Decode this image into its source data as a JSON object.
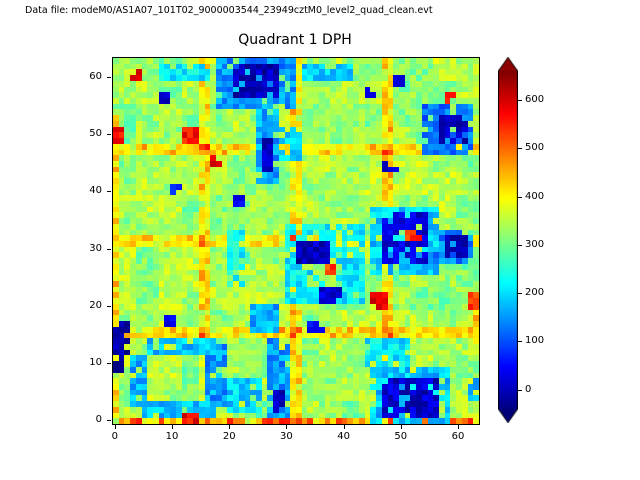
{
  "header": {
    "datafile_label": "Data file: modeM0/AS1A07_101T02_9000003544_23949cztM0_level2_quad_clean.evt"
  },
  "chart_data": {
    "type": "heatmap",
    "title": "Quadrant 1 DPH",
    "grid_size": 64,
    "x_ticks": [
      0,
      10,
      20,
      30,
      40,
      50,
      60
    ],
    "y_ticks": [
      0,
      10,
      20,
      30,
      40,
      50,
      60
    ],
    "colormap": "jet",
    "vmin": -40,
    "vmax": 660,
    "colorbar_ticks": [
      0,
      100,
      200,
      300,
      400,
      500,
      600
    ],
    "colorbar_extend": "both",
    "background_value": 330,
    "noise_amplitude": 38,
    "module_boundaries": [
      16,
      32,
      48
    ],
    "boundary_bump": 75,
    "features": [
      {
        "x": 0,
        "y": 0,
        "w": 64,
        "h": 1,
        "v": 470,
        "j": 90,
        "p": 0.95
      },
      {
        "x": 0,
        "y": 1,
        "w": 1,
        "h": 53,
        "v": 425,
        "j": 55,
        "p": 0.9
      },
      {
        "x": 63,
        "y": 14,
        "w": 1,
        "h": 9,
        "v": 455,
        "j": 55,
        "p": 0.9
      },
      {
        "x": 18,
        "y": 55,
        "w": 14,
        "h": 9,
        "v": 150
      },
      {
        "x": 21,
        "y": 57,
        "w": 8,
        "h": 6,
        "v": 0,
        "j": 35
      },
      {
        "x": 8,
        "y": 60,
        "w": 9,
        "h": 3,
        "v": 210
      },
      {
        "x": 33,
        "y": 60,
        "w": 9,
        "h": 3,
        "v": 190
      },
      {
        "x": 3,
        "y": 60,
        "w": 2,
        "h": 2,
        "v": 580,
        "j": 30
      },
      {
        "x": 8,
        "y": 56,
        "w": 2,
        "h": 2,
        "v": 10,
        "j": 30
      },
      {
        "x": 44,
        "y": 57,
        "w": 2,
        "h": 2,
        "v": 10,
        "j": 30
      },
      {
        "x": 49,
        "y": 59,
        "w": 2,
        "h": 2,
        "v": 20,
        "j": 30
      },
      {
        "x": 58,
        "y": 56,
        "w": 2,
        "h": 2,
        "v": 575,
        "j": 30
      },
      {
        "x": 0,
        "y": 49,
        "w": 2,
        "h": 3,
        "v": 560,
        "j": 40
      },
      {
        "x": 12,
        "y": 49,
        "w": 3,
        "h": 3,
        "v": 565,
        "j": 40
      },
      {
        "x": 17,
        "y": 45,
        "w": 2,
        "h": 2,
        "v": 585,
        "j": 30
      },
      {
        "x": 25,
        "y": 42,
        "w": 4,
        "h": 13,
        "v": 160
      },
      {
        "x": 26,
        "y": 44,
        "w": 2,
        "h": 6,
        "v": 10,
        "j": 35
      },
      {
        "x": 29,
        "y": 46,
        "w": 4,
        "h": 6,
        "v": 185
      },
      {
        "x": 54,
        "y": 47,
        "w": 9,
        "h": 9,
        "v": 130
      },
      {
        "x": 57,
        "y": 49,
        "w": 5,
        "h": 5,
        "v": 0,
        "j": 30
      },
      {
        "x": 47,
        "y": 44,
        "w": 3,
        "h": 2,
        "v": 20,
        "j": 30
      },
      {
        "x": 10,
        "y": 40,
        "w": 2,
        "h": 2,
        "v": 60,
        "j": 30
      },
      {
        "x": 21,
        "y": 38,
        "w": 2,
        "h": 2,
        "v": 40,
        "j": 30
      },
      {
        "x": 45,
        "y": 26,
        "w": 12,
        "h": 12,
        "v": 190
      },
      {
        "x": 47,
        "y": 28,
        "w": 8,
        "h": 9,
        "v": 25,
        "j": 40
      },
      {
        "x": 51,
        "y": 32,
        "w": 3,
        "h": 2,
        "v": 540,
        "j": 40
      },
      {
        "x": 56,
        "y": 28,
        "w": 7,
        "h": 6,
        "v": 140
      },
      {
        "x": 58,
        "y": 29,
        "w": 4,
        "h": 4,
        "v": -10,
        "j": 30
      },
      {
        "x": 45,
        "y": 20,
        "w": 3,
        "h": 3,
        "v": 580,
        "j": 40
      },
      {
        "x": 30,
        "y": 21,
        "w": 14,
        "h": 14,
        "v": 215,
        "p": 0.8
      },
      {
        "x": 34,
        "y": 24,
        "w": 5,
        "h": 5,
        "v": 335
      },
      {
        "x": 32,
        "y": 28,
        "w": 6,
        "h": 4,
        "v": 5,
        "j": 35
      },
      {
        "x": 36,
        "y": 21,
        "w": 4,
        "h": 3,
        "v": 20,
        "j": 35
      },
      {
        "x": 37,
        "y": 26,
        "w": 2,
        "h": 2,
        "v": 530,
        "j": 40
      },
      {
        "x": 20,
        "y": 24,
        "w": 3,
        "h": 10,
        "v": 225,
        "p": 0.75
      },
      {
        "x": 24,
        "y": 16,
        "w": 5,
        "h": 5,
        "v": 170
      },
      {
        "x": 34,
        "y": 16,
        "w": 3,
        "h": 2,
        "v": 40,
        "j": 30
      },
      {
        "x": 9,
        "y": 17,
        "w": 2,
        "h": 2,
        "v": 35,
        "j": 30
      },
      {
        "x": 0,
        "y": 9,
        "w": 3,
        "h": 9,
        "v": -10,
        "j": 30
      },
      {
        "x": 5,
        "y": 1,
        "w": 13,
        "h": 3,
        "v": 175
      },
      {
        "x": 3,
        "y": 3,
        "w": 3,
        "h": 9,
        "v": 170
      },
      {
        "x": 16,
        "y": 3,
        "w": 4,
        "h": 11,
        "v": 155
      },
      {
        "x": 6,
        "y": 12,
        "w": 12,
        "h": 3,
        "v": 185
      },
      {
        "x": 27,
        "y": 1,
        "w": 4,
        "h": 14,
        "v": 155
      },
      {
        "x": 28,
        "y": 2,
        "w": 2,
        "h": 4,
        "v": 10,
        "j": 35
      },
      {
        "x": 20,
        "y": 2,
        "w": 6,
        "h": 6,
        "v": 195
      },
      {
        "x": 45,
        "y": 0,
        "w": 14,
        "h": 10,
        "v": 185,
        "p": 0.8
      },
      {
        "x": 47,
        "y": 1,
        "w": 10,
        "h": 7,
        "v": 15,
        "j": 40
      },
      {
        "x": 44,
        "y": 10,
        "w": 8,
        "h": 5,
        "v": 210,
        "p": 0.75
      },
      {
        "x": 62,
        "y": 4,
        "w": 2,
        "h": 4,
        "v": 160
      },
      {
        "x": 62,
        "y": 20,
        "w": 2,
        "h": 3,
        "v": 540,
        "j": 40
      },
      {
        "x": 12,
        "y": 0,
        "w": 3,
        "h": 2,
        "v": 575,
        "j": 40
      },
      {
        "x": 29,
        "y": 0,
        "w": 3,
        "h": 1,
        "v": 530
      },
      {
        "x": 40,
        "y": 0,
        "w": 2,
        "h": 1,
        "v": 500
      }
    ]
  }
}
